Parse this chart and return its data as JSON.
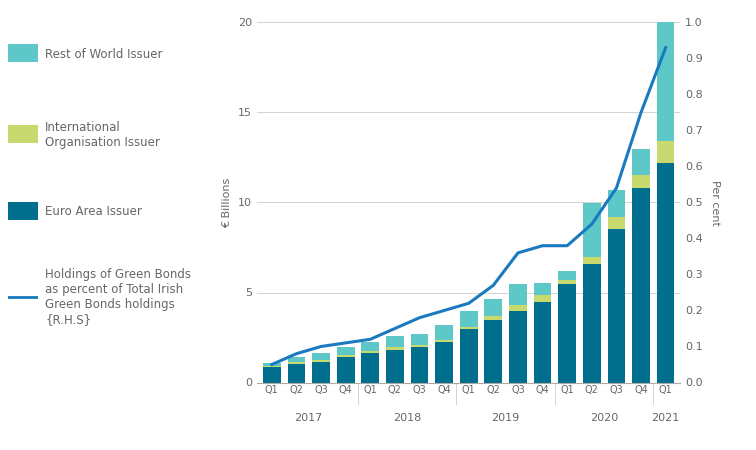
{
  "quarters": [
    "Q1",
    "Q2",
    "Q3",
    "Q4",
    "Q1",
    "Q2",
    "Q3",
    "Q4",
    "Q1",
    "Q2",
    "Q3",
    "Q4",
    "Q1",
    "Q2",
    "Q3",
    "Q4",
    "Q1"
  ],
  "years": [
    2017,
    2017,
    2017,
    2017,
    2018,
    2018,
    2018,
    2018,
    2019,
    2019,
    2019,
    2019,
    2020,
    2020,
    2020,
    2020,
    2021
  ],
  "year_labels": [
    "2017",
    "2018",
    "2019",
    "2020",
    "2021"
  ],
  "euro_area": [
    0.85,
    1.05,
    1.15,
    1.4,
    1.65,
    1.8,
    2.0,
    2.25,
    3.0,
    3.5,
    4.0,
    4.5,
    5.5,
    6.6,
    8.5,
    10.8,
    12.2
  ],
  "intl_org": [
    0.05,
    0.1,
    0.1,
    0.15,
    0.1,
    0.15,
    0.1,
    0.1,
    0.1,
    0.2,
    0.3,
    0.35,
    0.2,
    0.35,
    0.7,
    0.75,
    1.2
  ],
  "row_issuer": [
    0.2,
    0.25,
    0.4,
    0.4,
    0.5,
    0.65,
    0.6,
    0.85,
    0.9,
    0.95,
    1.15,
    0.7,
    0.5,
    3.0,
    1.5,
    1.4,
    6.6
  ],
  "pct_line": [
    0.05,
    0.08,
    0.1,
    0.11,
    0.12,
    0.15,
    0.18,
    0.2,
    0.22,
    0.27,
    0.36,
    0.38,
    0.38,
    0.44,
    0.54,
    0.75,
    0.93
  ],
  "color_euro_area": "#006f8e",
  "color_intl_org": "#c8d96f",
  "color_row": "#5ec8c8",
  "color_line": "#1a7abf",
  "ylim_left": [
    0,
    20
  ],
  "ylim_right": [
    0,
    1.0
  ],
  "ylabel_left": "€ Billions",
  "ylabel_right": "Per cent",
  "yticks_left": [
    0,
    5,
    10,
    15,
    20
  ],
  "yticks_right": [
    0.0,
    0.1,
    0.2,
    0.3,
    0.4,
    0.5,
    0.6,
    0.7,
    0.8,
    0.9,
    1.0
  ],
  "legend_row_label": "Rest of World Issuer",
  "legend_intl_label": "International\nOrganisation Issuer",
  "legend_euro_label": "Euro Area Issuer",
  "legend_line_label": "Holdings of Green Bonds\nas percent of Total Irish\nGreen Bonds holdings\n{R.H.S}",
  "background_color": "#ffffff",
  "grid_color": "#cccccc",
  "text_color": "#666666"
}
